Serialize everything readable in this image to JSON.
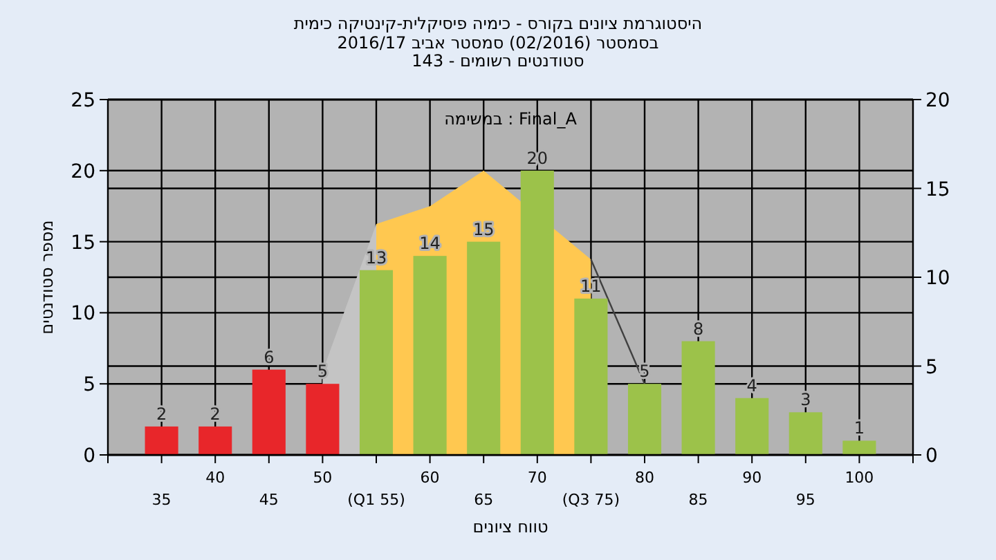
{
  "chart_data": {
    "type": "bar",
    "title": "היסטוגרמת ציונים בקורס - כימיה פיסיקלית-קינטיקה כימית",
    "subtitle": "בסמסטר  (02/2016)  סמסטר אביב 2016/17\nסטודנטים רשומים - 143",
    "xlabel": "טווח ציונים",
    "ylabel": "מספר סטודנטים",
    "annotations": [
      "במשימה : Final_A"
    ],
    "categories": [
      "35",
      "40",
      "45",
      "50",
      "(Q1 55)",
      "60",
      "65",
      "70",
      "(Q3 75)",
      "80",
      "85",
      "90",
      "95",
      "100"
    ],
    "series": [
      {
        "type": "area",
        "axis": "y2",
        "color": "#c4c4c4",
        "values": [
          null,
          null,
          null,
          4.7,
          13,
          null,
          null,
          null,
          null,
          null,
          null,
          null,
          null,
          null
        ]
      },
      {
        "type": "area",
        "axis": "y2",
        "color": "#ffc850",
        "values": [
          null,
          null,
          null,
          null,
          13,
          14,
          16,
          null,
          11,
          null,
          null,
          null,
          null,
          null
        ]
      },
      {
        "type": "line",
        "axis": "y2",
        "color": "#404040",
        "values": [
          null,
          null,
          null,
          null,
          null,
          null,
          null,
          null,
          11,
          4,
          null,
          null,
          null,
          null
        ]
      },
      {
        "colors": [
          "#e8262a",
          "#e8262a",
          "#e8262a",
          "#e8262a",
          "#9cc24a",
          "#9cc24a",
          "#9cc24a",
          "#9cc24a",
          "#9cc24a",
          "#9cc24a",
          "#9cc24a",
          "#9cc24a",
          "#9cc24a",
          "#9cc24a"
        ],
        "values": [
          2,
          2,
          6,
          5,
          13,
          14,
          15,
          20,
          11,
          5,
          8,
          4,
          3,
          1
        ],
        "value_labels": [
          "2",
          "2",
          "6",
          "5",
          "13",
          "14",
          "15",
          "20",
          "11",
          "5",
          "8",
          "4",
          "3",
          "1"
        ]
      }
    ],
    "ylim": [
      0,
      25
    ],
    "yticks": [
      0,
      5,
      10,
      15,
      20,
      25
    ],
    "y2lim": [
      0,
      20
    ],
    "y2ticks": [
      0,
      5,
      10,
      15,
      20
    ],
    "grid": true
  }
}
